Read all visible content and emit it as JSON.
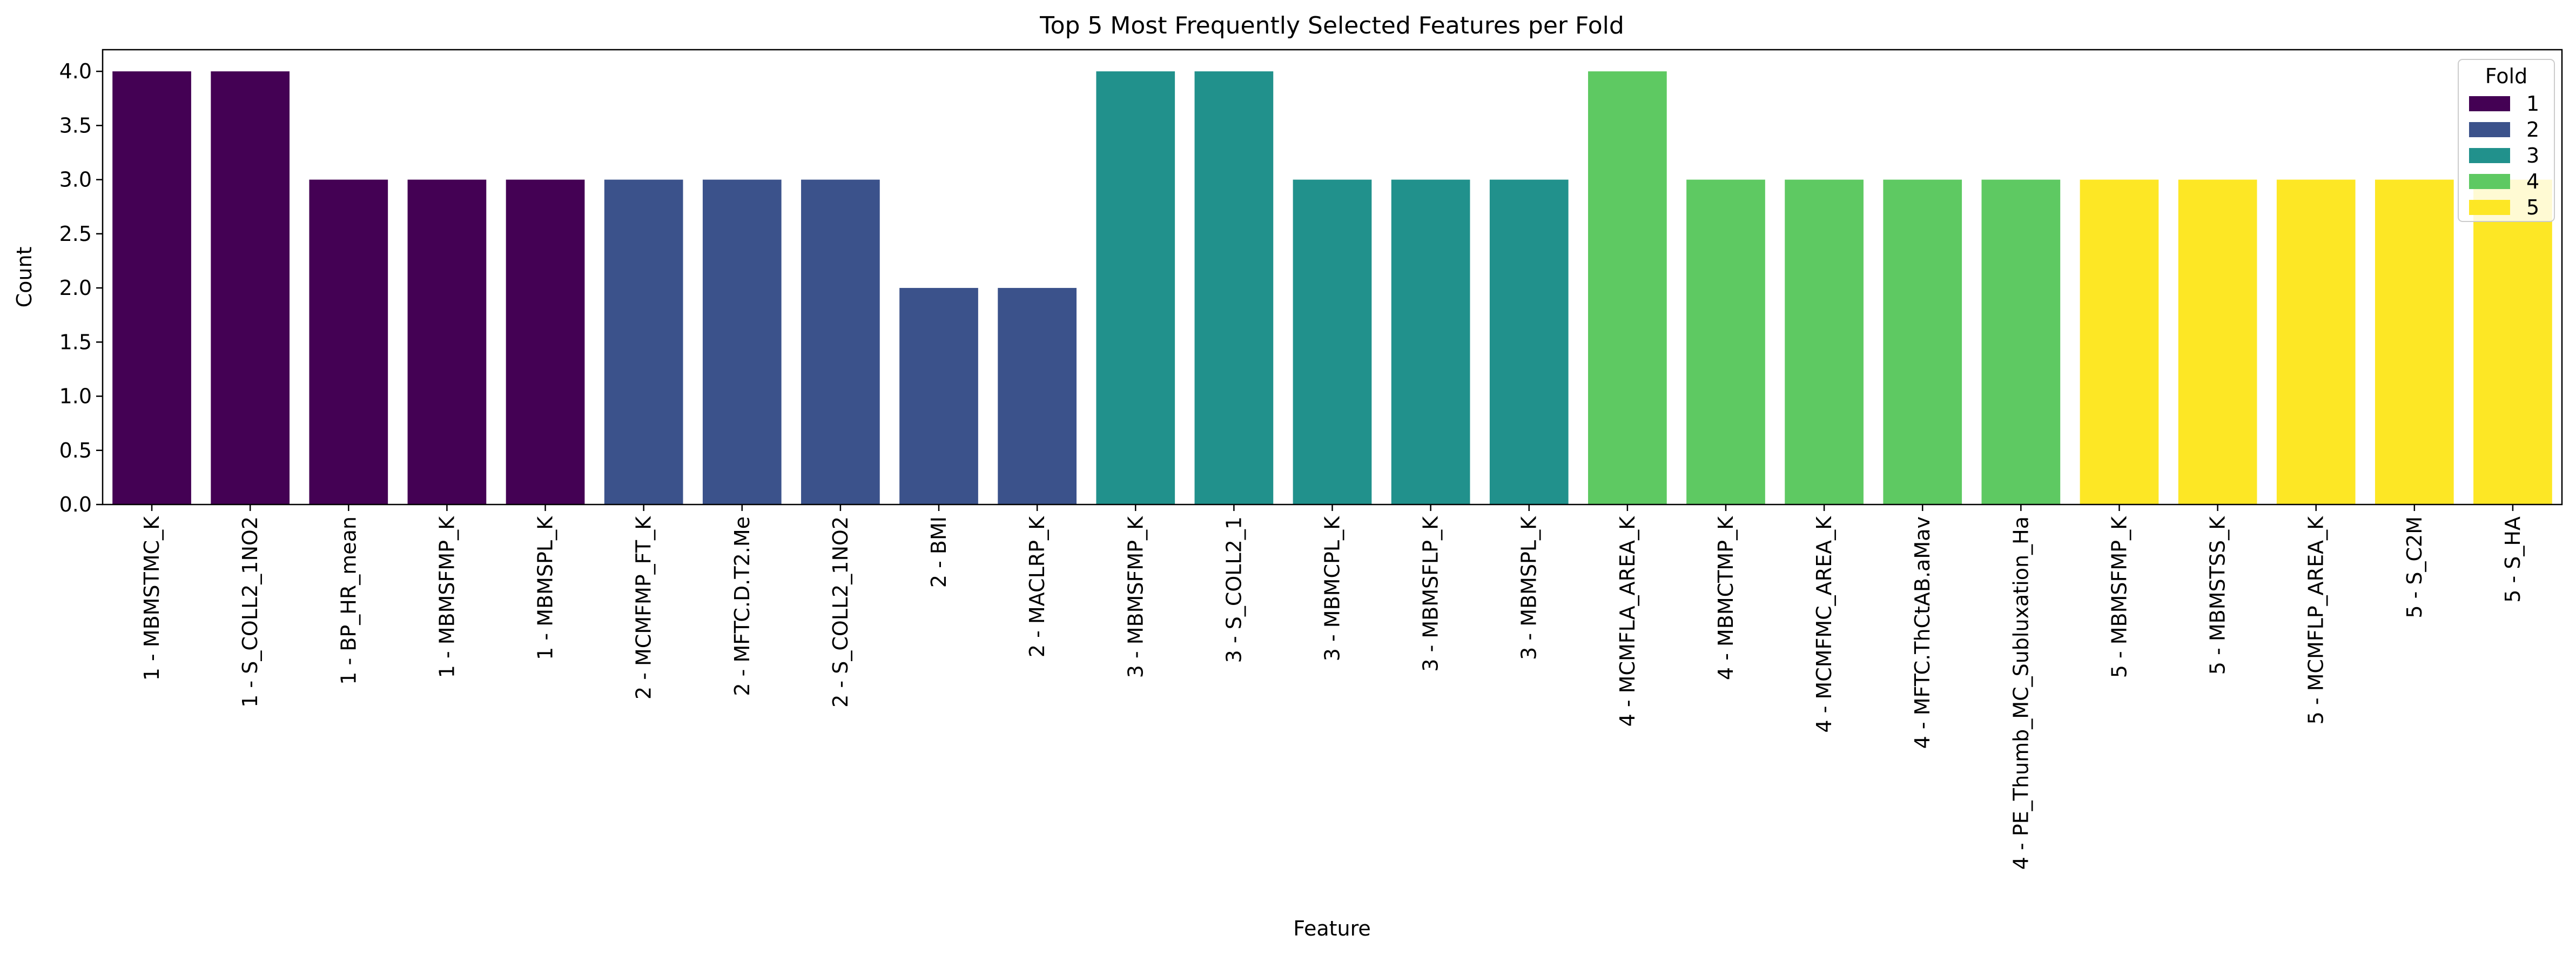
{
  "chart_data": {
    "type": "bar",
    "title": "Top 5 Most Frequently Selected Features per Fold",
    "xlabel": "Feature",
    "ylabel": "Count",
    "ylim": [
      0,
      4.2
    ],
    "yticks": [
      "0.0",
      "0.5",
      "1.0",
      "1.5",
      "2.0",
      "2.5",
      "3.0",
      "3.5",
      "4.0"
    ],
    "grid": false,
    "legend": {
      "title": "Fold",
      "placement": "top-right",
      "entries": [
        {
          "label": "1",
          "color": "#440154"
        },
        {
          "label": "2",
          "color": "#3b528b"
        },
        {
          "label": "3",
          "color": "#21918c"
        },
        {
          "label": "4",
          "color": "#5ec962"
        },
        {
          "label": "5",
          "color": "#fde725"
        }
      ]
    },
    "categories": [
      "1 - MBMSTMC_K",
      "1 - S_COLL2_1NO2",
      "1 - BP_HR_mean",
      "1 - MBMSFMP_K",
      "1 - MBMSPL_K",
      "2 - MCMFMP_FT_K",
      "2 - MFTC.D.T2.Me",
      "2 - S_COLL2_1NO2",
      "2 - BMI",
      "2 - MACLRP_K",
      "3 - MBMSFMP_K",
      "3 - S_COLL2_1",
      "3 - MBMCPL_K",
      "3 - MBMSFLP_K",
      "3 - MBMSPL_K",
      "4 - MCMFLA_AREA_K",
      "4 - MBMCTMP_K",
      "4 - MCMFMC_AREA_K",
      "4 - MFTC.ThCtAB.aMav",
      "4 - PE_Thumb_MC_Subluxation_Ha",
      "5 - MBMSFMP_K",
      "5 - MBMSTSS_K",
      "5 - MCMFLP_AREA_K",
      "5 - S_C2M",
      "5 - S_HA"
    ],
    "values": [
      4,
      4,
      3,
      3,
      3,
      3,
      3,
      3,
      2,
      2,
      4,
      4,
      3,
      3,
      3,
      4,
      3,
      3,
      3,
      3,
      3,
      3,
      3,
      3,
      3
    ],
    "fold": [
      "1",
      "1",
      "1",
      "1",
      "1",
      "2",
      "2",
      "2",
      "2",
      "2",
      "3",
      "3",
      "3",
      "3",
      "3",
      "4",
      "4",
      "4",
      "4",
      "4",
      "5",
      "5",
      "5",
      "5",
      "5"
    ],
    "colors": {
      "1": "#440154",
      "2": "#3b528b",
      "3": "#21918c",
      "4": "#5ec962",
      "5": "#fde725"
    }
  }
}
